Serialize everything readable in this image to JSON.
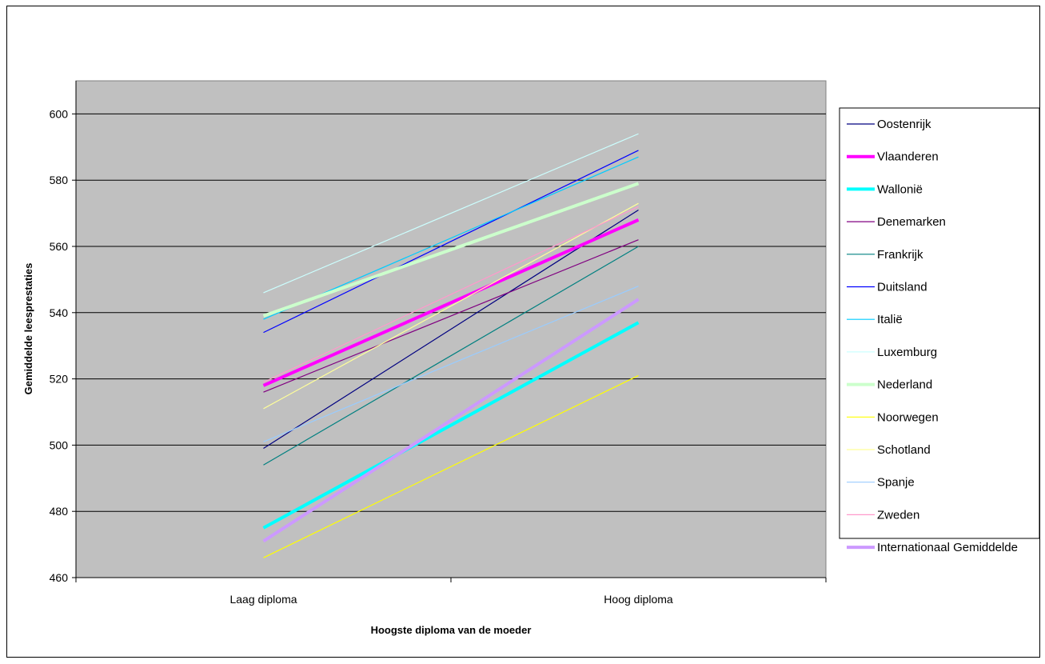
{
  "chart_data": {
    "type": "line",
    "title": "",
    "xlabel": "Hoogste diploma van de moeder",
    "ylabel": "Gemiddelde leesprestaties",
    "categories": [
      "Laag diploma",
      "Hoog diploma"
    ],
    "ylim": [
      460,
      610
    ],
    "yticks": [
      460,
      480,
      500,
      520,
      540,
      560,
      580,
      600
    ],
    "grid": true,
    "legend_position": "right",
    "plot_background": "#c0c0c0",
    "series": [
      {
        "name": "Oostenrijk",
        "values": [
          499,
          571
        ],
        "color": "#000080",
        "width": 1.2
      },
      {
        "name": "Vlaanderen",
        "values": [
          518,
          568
        ],
        "color": "#ff00ff",
        "width": 4
      },
      {
        "name": "Wallonië",
        "values": [
          475,
          537
        ],
        "color": "#00ffff",
        "width": 4
      },
      {
        "name": "Denemarken",
        "values": [
          516,
          562
        ],
        "color": "#800080",
        "width": 1.2
      },
      {
        "name": "Frankrijk",
        "values": [
          494,
          560
        ],
        "color": "#008080",
        "width": 1.2
      },
      {
        "name": "Duitsland",
        "values": [
          534,
          589
        ],
        "color": "#0000ff",
        "width": 1.2
      },
      {
        "name": "Italië",
        "values": [
          538,
          587
        ],
        "color": "#00ccff",
        "width": 1.2
      },
      {
        "name": "Luxemburg",
        "values": [
          546,
          594
        ],
        "color": "#ccffff",
        "width": 1.2
      },
      {
        "name": "Nederland",
        "values": [
          539,
          579
        ],
        "color": "#ccffcc",
        "width": 4
      },
      {
        "name": "Noorwegen",
        "values": [
          466,
          521
        ],
        "color": "#ffff00",
        "width": 1.2
      },
      {
        "name": "Schotland",
        "values": [
          511,
          573
        ],
        "color": "#ffff99",
        "width": 1.2
      },
      {
        "name": "Spanje",
        "values": [
          501,
          548
        ],
        "color": "#99ccff",
        "width": 1.2
      },
      {
        "name": "Zweden",
        "values": [
          519,
          572
        ],
        "color": "#ff99cc",
        "width": 1.2
      },
      {
        "name": "Internationaal Gemiddelde",
        "values": [
          471,
          544
        ],
        "color": "#cc99ff",
        "width": 4
      }
    ]
  }
}
